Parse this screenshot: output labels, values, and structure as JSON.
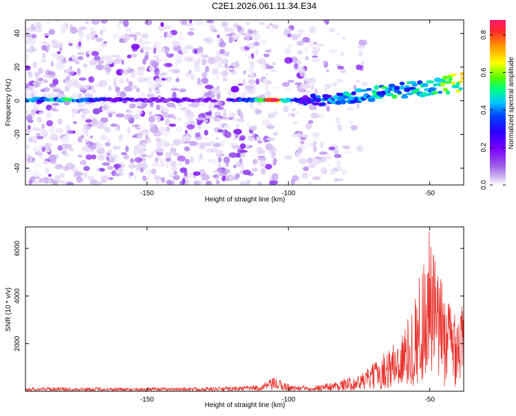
{
  "title": "C2E1.2026.061.11.34.E34",
  "chart_data": [
    {
      "type": "heatmap",
      "xlabel": "Height of straight line (km)",
      "ylabel": "Frequency (Hz)",
      "xlim": [
        -193,
        -38
      ],
      "ylim": [
        -50,
        48
      ],
      "xticks": [
        -150,
        -100,
        -50
      ],
      "yticks": [
        -40,
        -20,
        0,
        20,
        40
      ],
      "colorbar": {
        "label": "Normalized spectral amplitude",
        "range": [
          0,
          0.88
        ],
        "ticks": [
          0.0,
          0.2,
          0.4,
          0.6,
          0.8
        ],
        "colors": [
          "#ffffff",
          "#d6c2f2",
          "#9b59e8",
          "#7a00ff",
          "#2a00ff",
          "#0044ff",
          "#00c8ff",
          "#00ff80",
          "#55ff00",
          "#ffff00",
          "#ff9900",
          "#ff2a2a",
          "#ff1a6e"
        ]
      },
      "background_noise": {
        "extent": [
          -193,
          -73
        ],
        "gap_extent": [
          -104,
          -101
        ],
        "density_falloff_km": [
          -118,
          -73
        ]
      },
      "signal_track": {
        "points": [
          {
            "x": -193,
            "y": 0.5,
            "amp": 0.45
          },
          {
            "x": -185,
            "y": 0.5,
            "amp": 0.4
          },
          {
            "x": -180,
            "y": 0.5,
            "amp": 0.55
          },
          {
            "x": -176,
            "y": 0.5,
            "amp": 0.5
          },
          {
            "x": -170,
            "y": 0.5,
            "amp": 0.35
          },
          {
            "x": -160,
            "y": 0.5,
            "amp": 0.3
          },
          {
            "x": -150,
            "y": 0.5,
            "amp": 0.25
          },
          {
            "x": -140,
            "y": 0.5,
            "amp": 0.25
          },
          {
            "x": -130,
            "y": 0.5,
            "amp": 0.2
          },
          {
            "x": -120,
            "y": 0.5,
            "amp": 0.3
          },
          {
            "x": -112,
            "y": 0.5,
            "amp": 0.45
          },
          {
            "x": -108,
            "y": 0.5,
            "amp": 0.6
          },
          {
            "x": -105,
            "y": 0.5,
            "amp": 0.88
          },
          {
            "x": -102,
            "y": 0.5,
            "amp": 0.5
          },
          {
            "x": -95,
            "y": 0.0,
            "amp": 0.3
          },
          {
            "x": -88,
            "y": 0.5,
            "amp": 0.4
          },
          {
            "x": -80,
            "y": 2.0,
            "amp": 0.45
          },
          {
            "x": -70,
            "y": 4.0,
            "amp": 0.5
          },
          {
            "x": -62,
            "y": 6.0,
            "amp": 0.5
          },
          {
            "x": -55,
            "y": 7.0,
            "amp": 0.5
          },
          {
            "x": -48,
            "y": 8.5,
            "amp": 0.55
          },
          {
            "x": -43,
            "y": 10.0,
            "amp": 0.6
          },
          {
            "x": -39,
            "y": 11.0,
            "amp": 0.65
          }
        ]
      }
    },
    {
      "type": "line",
      "xlabel": "Height of straight line (km)",
      "ylabel": "SNR (10 * v/v)",
      "xlim": [
        -193,
        -38
      ],
      "ylim": [
        0,
        6900
      ],
      "xticks": [
        -150,
        -100,
        -50
      ],
      "yticks": [
        2000,
        4000,
        6000
      ],
      "series": [
        {
          "name": "SNR",
          "color": "#e8302a",
          "envelope_x": [
            -193,
            -180,
            -160,
            -140,
            -120,
            -110,
            -105,
            -102,
            -98,
            -90,
            -85,
            -80,
            -75,
            -70,
            -65,
            -60,
            -56,
            -53,
            -50,
            -48,
            -45,
            -42,
            -40,
            -38
          ],
          "envelope_y": [
            160,
            160,
            150,
            150,
            180,
            260,
            550,
            400,
            220,
            260,
            350,
            500,
            650,
            1100,
            1700,
            2300,
            3400,
            5000,
            6700,
            5200,
            4200,
            3600,
            3900,
            3500
          ]
        }
      ]
    }
  ]
}
